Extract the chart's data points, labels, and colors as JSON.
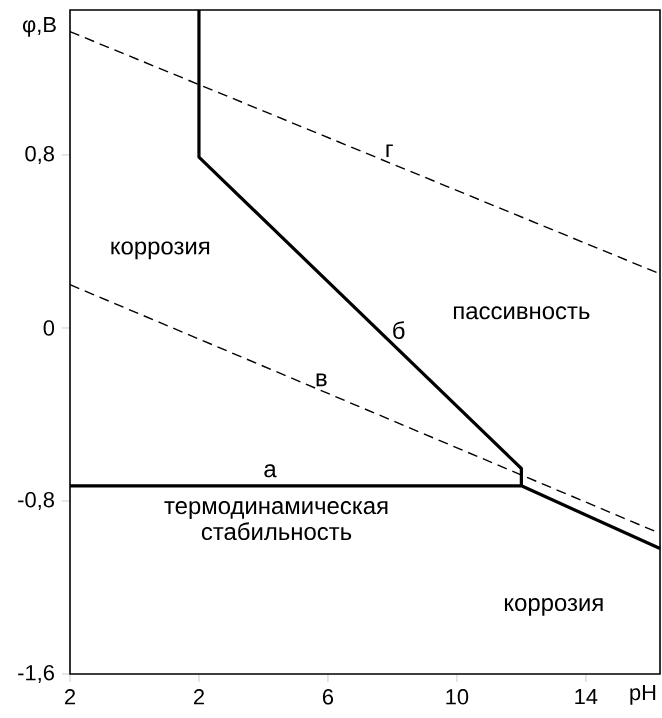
{
  "chart_data": {
    "type": "line",
    "xlabel": "pH",
    "ylabel": "φ,В",
    "xlim": [
      -2,
      16.3
    ],
    "ylim": [
      -1.6,
      1.47
    ],
    "xticks": [
      {
        "value": -2,
        "label": "2"
      },
      2,
      6,
      10,
      14
    ],
    "yticks": [
      {
        "value": 0.8,
        "label": "0,8"
      },
      0,
      {
        "value": -0.8,
        "label": "-0,8"
      },
      {
        "value": -1.6,
        "label": "-1,6"
      }
    ],
    "grid": false,
    "marker": "none",
    "series": [
      {
        "name": "а",
        "color": "#000000",
        "line_style": "solid",
        "x": [
          -2,
          12,
          16.3
        ],
        "values": [
          -0.73,
          -0.73,
          -1.02
        ]
      },
      {
        "name": "б",
        "color": "#000000",
        "line_style": "solid",
        "x": [
          2,
          2,
          12,
          12
        ],
        "values": [
          1.47,
          0.79,
          -0.65,
          -0.73
        ]
      },
      {
        "name": "в",
        "color": "#000000",
        "line_style": "dashed",
        "x": [
          -2,
          16.3
        ],
        "values": [
          0.2,
          -0.95
        ]
      },
      {
        "name": "г",
        "color": "#000000",
        "line_style": "dashed",
        "x": [
          -2,
          16.3
        ],
        "values": [
          1.37,
          0.25
        ]
      }
    ],
    "annotations": [
      "коррозия",
      "пассивность",
      "термодинамическая стабильность",
      "коррозия"
    ]
  }
}
